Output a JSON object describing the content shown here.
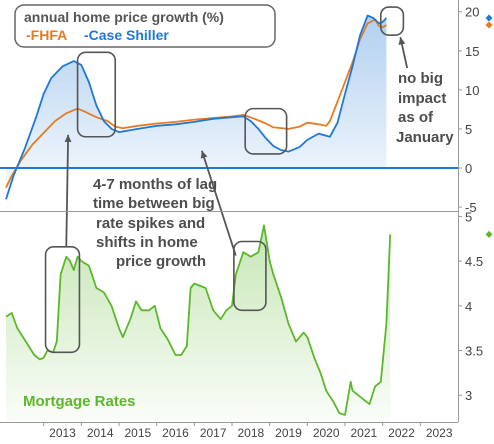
{
  "chart_data": [
    {
      "type": "area",
      "panel": "top",
      "legend_title": "annual home price growth (%)",
      "legend_placement": "top-left",
      "series": [
        {
          "name": "-FHFA",
          "color": "#e57c23",
          "points": [
            [
              2012.0,
              -2.5
            ],
            [
              2012.15,
              -1.0
            ],
            [
              2012.4,
              1.0
            ],
            [
              2012.7,
              3.0
            ],
            [
              2013.0,
              4.5
            ],
            [
              2013.3,
              6.0
            ],
            [
              2013.6,
              7.0
            ],
            [
              2013.9,
              7.6
            ],
            [
              2014.1,
              7.2
            ],
            [
              2014.4,
              6.5
            ],
            [
              2014.7,
              6.0
            ],
            [
              2014.9,
              5.3
            ],
            [
              2015.1,
              5.1
            ],
            [
              2015.5,
              5.4
            ],
            [
              2016.0,
              5.7
            ],
            [
              2016.5,
              5.9
            ],
            [
              2017.0,
              6.2
            ],
            [
              2017.5,
              6.4
            ],
            [
              2018.0,
              6.6
            ],
            [
              2018.3,
              6.8
            ],
            [
              2018.6,
              6.3
            ],
            [
              2018.9,
              5.7
            ],
            [
              2019.1,
              5.2
            ],
            [
              2019.5,
              5.0
            ],
            [
              2019.8,
              5.3
            ],
            [
              2020.0,
              5.8
            ],
            [
              2020.3,
              5.6
            ],
            [
              2020.5,
              5.4
            ],
            [
              2020.6,
              6.0
            ],
            [
              2020.8,
              8.5
            ],
            [
              2021.0,
              11.0
            ],
            [
              2021.2,
              13.5
            ],
            [
              2021.4,
              16.5
            ],
            [
              2021.6,
              18.5
            ],
            [
              2021.8,
              19.0
            ],
            [
              2021.9,
              18.2
            ],
            [
              2022.0,
              18.0
            ],
            [
              2022.1,
              18.3
            ]
          ]
        },
        {
          "name": "-Case Shiller",
          "color": "#1f78d6",
          "points": [
            [
              2012.0,
              -4.0
            ],
            [
              2012.2,
              -1.0
            ],
            [
              2012.5,
              2.5
            ],
            [
              2012.8,
              6.5
            ],
            [
              2013.0,
              9.5
            ],
            [
              2013.2,
              11.5
            ],
            [
              2013.5,
              13.0
            ],
            [
              2013.8,
              13.7
            ],
            [
              2014.0,
              13.2
            ],
            [
              2014.2,
              11.0
            ],
            [
              2014.4,
              8.0
            ],
            [
              2014.6,
              6.0
            ],
            [
              2014.8,
              5.0
            ],
            [
              2015.0,
              4.6
            ],
            [
              2015.5,
              5.0
            ],
            [
              2016.0,
              5.4
            ],
            [
              2016.5,
              5.6
            ],
            [
              2017.0,
              5.9
            ],
            [
              2017.5,
              6.3
            ],
            [
              2018.0,
              6.5
            ],
            [
              2018.3,
              6.6
            ],
            [
              2018.5,
              6.0
            ],
            [
              2018.7,
              5.0
            ],
            [
              2018.9,
              3.8
            ],
            [
              2019.1,
              2.8
            ],
            [
              2019.3,
              2.3
            ],
            [
              2019.5,
              2.1
            ],
            [
              2019.8,
              2.7
            ],
            [
              2020.0,
              3.6
            ],
            [
              2020.3,
              4.4
            ],
            [
              2020.6,
              4.0
            ],
            [
              2020.8,
              5.8
            ],
            [
              2021.0,
              9.5
            ],
            [
              2021.2,
              13.0
            ],
            [
              2021.4,
              17.0
            ],
            [
              2021.6,
              19.5
            ],
            [
              2021.75,
              19.2
            ],
            [
              2021.9,
              18.5
            ],
            [
              2022.0,
              18.7
            ],
            [
              2022.1,
              19.2
            ]
          ]
        }
      ],
      "y_ticks": [
        "-5",
        "0",
        "5",
        "10",
        "15",
        "20"
      ],
      "ylim": [
        -5.5,
        21.5
      ],
      "zero_line": true
    },
    {
      "type": "area",
      "panel": "bottom",
      "series": [
        {
          "name": "Mortgage Rates",
          "color": "#5cb82b",
          "points": [
            [
              2012.0,
              3.88
            ],
            [
              2012.15,
              3.92
            ],
            [
              2012.3,
              3.75
            ],
            [
              2012.45,
              3.65
            ],
            [
              2012.6,
              3.55
            ],
            [
              2012.75,
              3.45
            ],
            [
              2012.9,
              3.4
            ],
            [
              2013.0,
              3.42
            ],
            [
              2013.1,
              3.5
            ],
            [
              2013.25,
              3.48
            ],
            [
              2013.35,
              3.6
            ],
            [
              2013.45,
              4.35
            ],
            [
              2013.6,
              4.55
            ],
            [
              2013.7,
              4.5
            ],
            [
              2013.8,
              4.4
            ],
            [
              2013.9,
              4.55
            ],
            [
              2014.0,
              4.5
            ],
            [
              2014.2,
              4.45
            ],
            [
              2014.4,
              4.2
            ],
            [
              2014.6,
              4.15
            ],
            [
              2014.8,
              4.0
            ],
            [
              2015.0,
              3.75
            ],
            [
              2015.1,
              3.65
            ],
            [
              2015.3,
              3.85
            ],
            [
              2015.45,
              4.05
            ],
            [
              2015.6,
              3.95
            ],
            [
              2015.8,
              3.95
            ],
            [
              2015.95,
              4.0
            ],
            [
              2016.1,
              3.75
            ],
            [
              2016.3,
              3.62
            ],
            [
              2016.5,
              3.45
            ],
            [
              2016.65,
              3.45
            ],
            [
              2016.8,
              3.55
            ],
            [
              2016.9,
              4.2
            ],
            [
              2017.0,
              4.25
            ],
            [
              2017.3,
              4.2
            ],
            [
              2017.5,
              3.95
            ],
            [
              2017.7,
              3.85
            ],
            [
              2017.85,
              3.95
            ],
            [
              2018.0,
              4.0
            ],
            [
              2018.1,
              4.35
            ],
            [
              2018.3,
              4.6
            ],
            [
              2018.5,
              4.55
            ],
            [
              2018.7,
              4.6
            ],
            [
              2018.85,
              4.9
            ],
            [
              2019.0,
              4.5
            ],
            [
              2019.1,
              4.35
            ],
            [
              2019.3,
              4.1
            ],
            [
              2019.5,
              3.8
            ],
            [
              2019.7,
              3.6
            ],
            [
              2019.9,
              3.7
            ],
            [
              2020.0,
              3.65
            ],
            [
              2020.2,
              3.4
            ],
            [
              2020.35,
              3.25
            ],
            [
              2020.5,
              3.05
            ],
            [
              2020.7,
              2.92
            ],
            [
              2020.85,
              2.8
            ],
            [
              2021.0,
              2.78
            ],
            [
              2021.15,
              3.15
            ],
            [
              2021.2,
              3.05
            ],
            [
              2021.35,
              3.0
            ],
            [
              2021.5,
              2.95
            ],
            [
              2021.65,
              2.9
            ],
            [
              2021.8,
              3.1
            ],
            [
              2021.95,
              3.15
            ],
            [
              2022.1,
              3.8
            ],
            [
              2022.2,
              4.8
            ]
          ]
        }
      ],
      "y_ticks": [
        "3",
        "3.5",
        "4",
        "4.5",
        "5"
      ],
      "ylim": [
        2.7,
        5.05
      ]
    }
  ],
  "x_axis": {
    "ticks": [
      "2013",
      "2014",
      "2015",
      "2016",
      "2017",
      "2018",
      "2019",
      "2020",
      "2021",
      "2022",
      "2023"
    ],
    "xlim": [
      2012.0,
      2024.0
    ]
  },
  "highlight_boxes": [
    {
      "panel": "top",
      "x": [
        2013.9,
        2014.9
      ],
      "y": [
        4.0,
        14.8
      ]
    },
    {
      "panel": "top",
      "x": [
        2018.35,
        2019.45
      ],
      "y": [
        1.8,
        7.6
      ]
    },
    {
      "panel": "top",
      "x": [
        2021.95,
        2022.55
      ],
      "y": [
        17.0,
        20.6
      ]
    },
    {
      "panel": "bottom",
      "x": [
        2013.05,
        2013.95
      ],
      "y": [
        3.48,
        4.66
      ]
    },
    {
      "panel": "bottom",
      "x": [
        2018.05,
        2018.9
      ],
      "y": [
        3.95,
        4.72
      ]
    }
  ],
  "annotations": {
    "lag_note": [
      "4-7 months of lag",
      "time between big",
      "rate spikes and",
      "shifts in home",
      "price growth"
    ],
    "impact_note": [
      "no big",
      "impact",
      "as of",
      "January"
    ],
    "last_values": {
      "case_shiller": 19.2,
      "fhfa": 18.3,
      "mortgage": 4.8
    }
  },
  "colors": {
    "fhfa": "#e57c23",
    "case_shiller": "#1f78d6",
    "mortgage": "#5cb82b",
    "text": "#4d4d4d",
    "box": "#555555"
  }
}
